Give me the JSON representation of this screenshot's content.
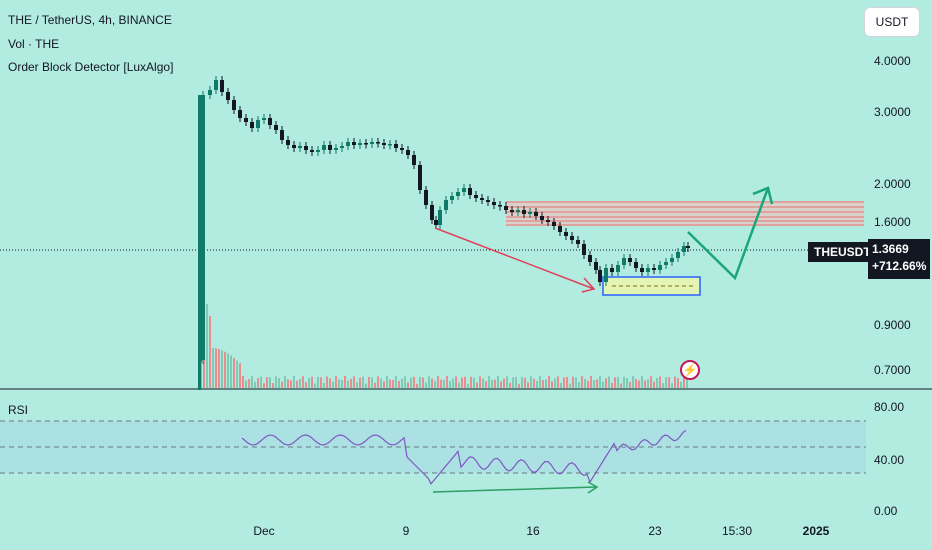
{
  "legend": {
    "symbol": "THE / TetherUS, 4h, BINANCE",
    "volume": "Vol · THE",
    "indicator": "Order Block Detector [LuxAlgo]"
  },
  "currency_button": "USDT",
  "price_axis": [
    "4.0000",
    "3.0000",
    "2.0000",
    "1.6000",
    "0.9000",
    "0.7000"
  ],
  "rsi_axis": [
    "80.00",
    "40.00",
    "0.00"
  ],
  "rsi_title": "RSI",
  "time_axis": [
    "Dec",
    "9",
    "16",
    "23",
    "15:30",
    "2025"
  ],
  "current": {
    "symbol": "THEUSDT",
    "price": "1.3669",
    "change": "+712.66%"
  },
  "colors": {
    "background": "#b2ebe0",
    "candle_up": "#0f7a68",
    "candle_down": "#131722",
    "order_block_bear": "#f28b8b",
    "order_block_bull": "#d9f2a6",
    "arrow_red": "#e0405a",
    "arrow_green": "#1aa67a",
    "rsi_line": "#7e57c2"
  },
  "icons": {
    "alert": "flash-icon"
  }
}
